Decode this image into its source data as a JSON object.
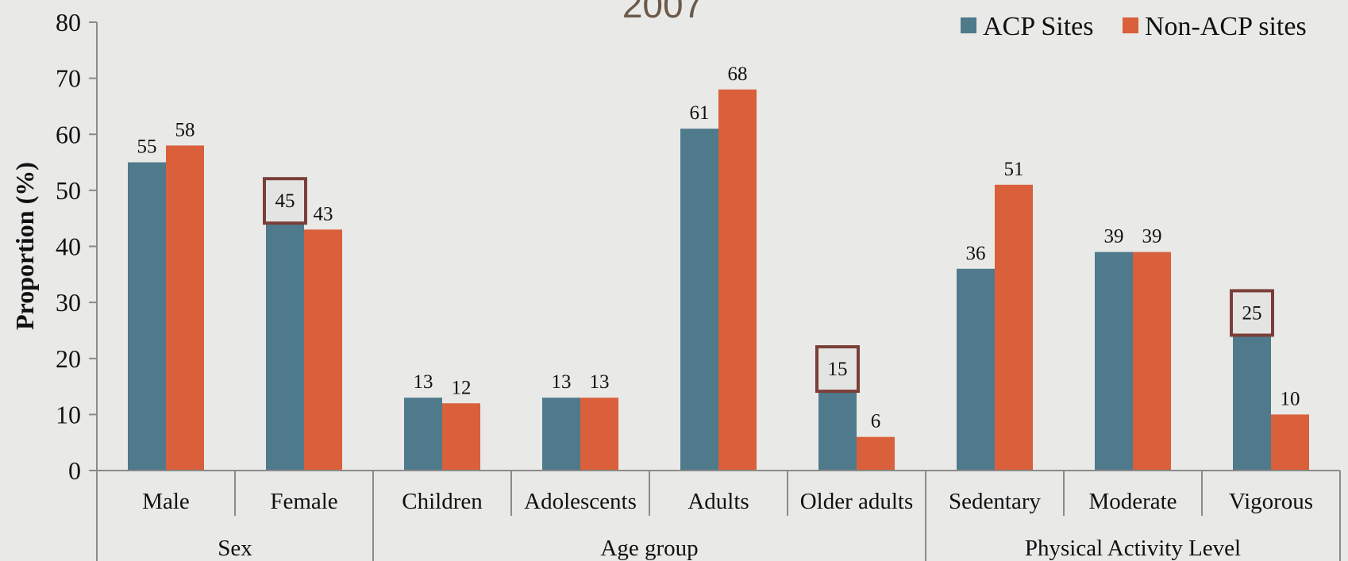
{
  "colors": {
    "background": "#e9e9e7",
    "acp": "#4e7a8c",
    "non_acp": "#d9603b",
    "highlight_box": "#7a3f38",
    "axis": "#8a8a8a",
    "title": "#6b5a4a"
  },
  "chart_data": {
    "type": "bar",
    "title": "2007",
    "ylabel": "Proportion (%)",
    "xlabel": "",
    "ylim": [
      0,
      80
    ],
    "yticks": [
      0,
      10,
      20,
      30,
      40,
      50,
      60,
      70,
      80
    ],
    "grid": false,
    "legend_position": "top-right",
    "categories": [
      "Male",
      "Female",
      "Children",
      "Adolescents",
      "Adults",
      "Older adults",
      "Sedentary",
      "Moderate",
      "Vigorous"
    ],
    "groups": [
      {
        "label": "Sex",
        "categories": [
          "Male",
          "Female"
        ]
      },
      {
        "label": "Age group",
        "categories": [
          "Children",
          "Adolescents",
          "Adults",
          "Older adults"
        ]
      },
      {
        "label": "Physical Activity Level",
        "categories": [
          "Sedentary",
          "Moderate",
          "Vigorous"
        ]
      }
    ],
    "series": [
      {
        "name": "ACP Sites",
        "values": [
          55,
          45,
          13,
          13,
          61,
          15,
          36,
          39,
          25
        ]
      },
      {
        "name": "Non-ACP sites",
        "values": [
          58,
          43,
          12,
          13,
          68,
          6,
          51,
          39,
          10
        ]
      }
    ],
    "highlighted_labels": [
      {
        "series": "ACP Sites",
        "category": "Female"
      },
      {
        "series": "ACP Sites",
        "category": "Older adults"
      },
      {
        "series": "ACP Sites",
        "category": "Vigorous"
      }
    ]
  }
}
